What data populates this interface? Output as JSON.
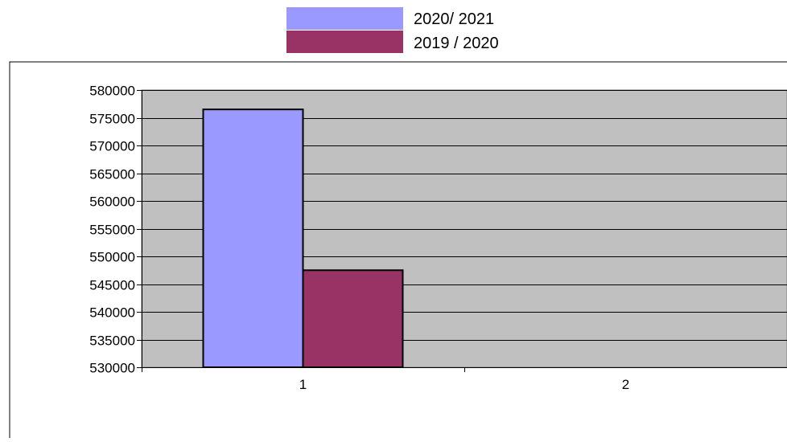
{
  "chart_data": {
    "type": "bar",
    "title": "",
    "xlabel": "",
    "ylabel": "",
    "categories": [
      "1",
      "2"
    ],
    "series": [
      {
        "name": "2020/ 2021",
        "color": "#9999ff",
        "values": [
          576500,
          null
        ]
      },
      {
        "name": "2019 / 2020",
        "color": "#993366",
        "values": [
          547500,
          null
        ]
      }
    ],
    "ylim": [
      530000,
      580000
    ],
    "y_ticks": [
      530000,
      535000,
      540000,
      545000,
      550000,
      555000,
      560000,
      565000,
      570000,
      575000,
      580000
    ],
    "y_tick_labels": [
      "530000",
      "535000",
      "540000",
      "545000",
      "550000",
      "555000",
      "560000",
      "565000",
      "570000",
      "575000",
      "580000"
    ],
    "grid": true,
    "plot_background": "#c0c0c0",
    "legend_position": "top-center"
  }
}
